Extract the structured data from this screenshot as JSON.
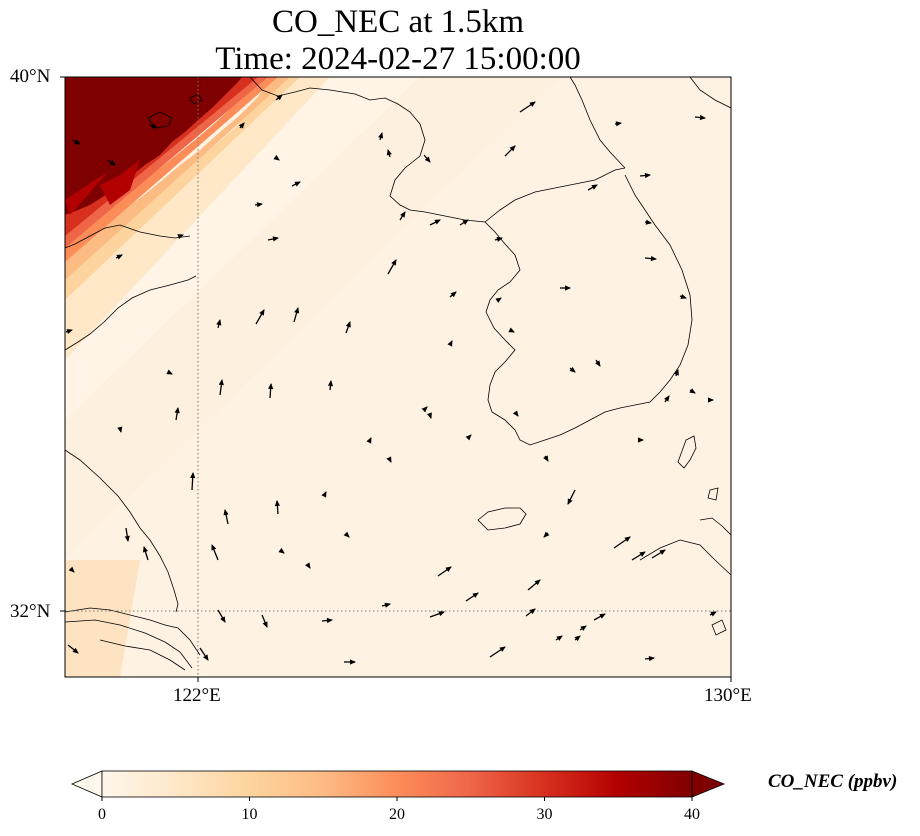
{
  "title_line1": "CO_NEC at 1.5km",
  "title_line2": "Time: 2024-02-27 15:00:00",
  "axes": {
    "lat_ticks": [
      "40°N",
      "32°N"
    ],
    "lon_ticks": [
      "122°E",
      "130°E"
    ],
    "lat_range": [
      31,
      40
    ],
    "lon_range": [
      120,
      130
    ]
  },
  "colorbar": {
    "label": "CO_NEC (ppbv)",
    "ticks": [
      "0",
      "10",
      "20",
      "30",
      "40"
    ],
    "range": [
      0,
      40
    ],
    "colormap": "OrRd",
    "extend": "both",
    "colors": [
      "#fff7ec",
      "#fee8c8",
      "#fdd49e",
      "#fdbb84",
      "#fc8d59",
      "#ef6548",
      "#d7301f",
      "#b30000",
      "#7f0000"
    ]
  },
  "chart_data": {
    "type": "heatmap",
    "title": "CO_NEC at 1.5km",
    "subtitle": "Time: 2024-02-27 15:00:00",
    "field": "CO_NEC",
    "units": "ppbv",
    "level": "1.5km",
    "time": "2024-02-27 15:00:00",
    "lon_range": [
      120,
      130
    ],
    "lat_range": [
      31,
      40
    ],
    "value_range": [
      0,
      40
    ],
    "gridlines": {
      "lon": [
        122
      ],
      "lat": [
        32
      ],
      "style": "dotted"
    },
    "features": {
      "high_plume": {
        "description_value": "≥40 ppbv saturated over north-west corner",
        "lon_min": 120,
        "lat_min": 36.5,
        "value": 40
      },
      "background": {
        "value_range": [
          0,
          4
        ]
      }
    },
    "wind_vectors": "present"
  }
}
